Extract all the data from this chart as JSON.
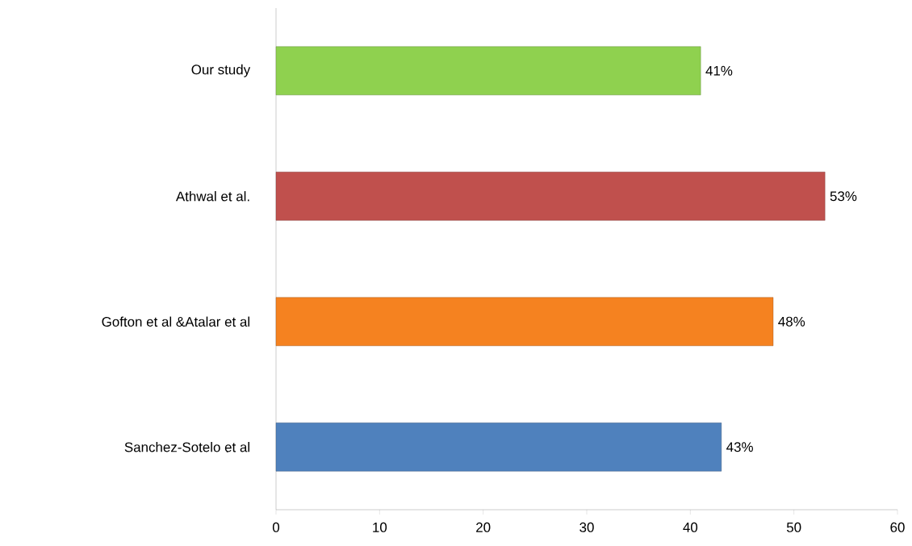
{
  "chart_data": {
    "type": "bar",
    "orientation": "horizontal",
    "categories": [
      "Our study",
      "Athwal et al.",
      "Gofton et al &Atalar et al",
      "Sanchez-Sotelo et al"
    ],
    "values": [
      41,
      53,
      48,
      43
    ],
    "colors": [
      "#8fd14f",
      "#c0504d",
      "#f58220",
      "#4f81bd"
    ],
    "value_labels": [
      "41%",
      "53%",
      "48%",
      "43%"
    ],
    "xlim": [
      0,
      60
    ],
    "xticks": [
      0,
      10,
      20,
      30,
      40,
      50,
      60
    ],
    "grid": false
  }
}
